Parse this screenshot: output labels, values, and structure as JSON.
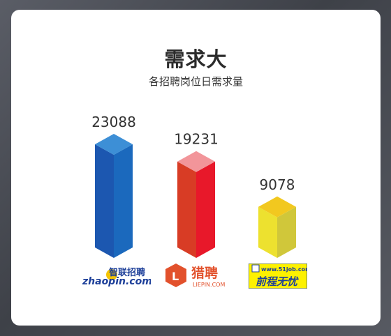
{
  "header": {
    "title": "需求大",
    "subtitle": "各招聘岗位日需求量"
  },
  "chart_data": {
    "type": "bar",
    "title": "需求大",
    "subtitle": "各招聘岗位日需求量",
    "categories": [
      "zhaopin.com 智联招聘",
      "猎聘 LIEPIN.COM",
      "www.51job.com 前程无忧"
    ],
    "values": [
      23088,
      19231,
      9078
    ],
    "labels": [
      "23088",
      "19231",
      "9078"
    ],
    "ylim": [
      0,
      23088
    ],
    "grid": false,
    "legend": "none",
    "colors": [
      {
        "front": "#1c57b0",
        "side": "#1b69bd",
        "top": "#3d8fd6"
      },
      {
        "front": "#d83c25",
        "side": "#e8182a",
        "top": "#f2959a"
      },
      {
        "front": "#ede12f",
        "side": "#d0c73a",
        "top": "#f2c81f"
      }
    ]
  },
  "logos": {
    "zhaopin": {
      "cn": "智联招聘",
      "en": "zhaopin.com"
    },
    "liepin": {
      "cn": "猎聘",
      "en": "LIEPIN.COM",
      "mark": "L"
    },
    "job51": {
      "url": "www.51job.com",
      "cn": "前程无忧"
    }
  }
}
